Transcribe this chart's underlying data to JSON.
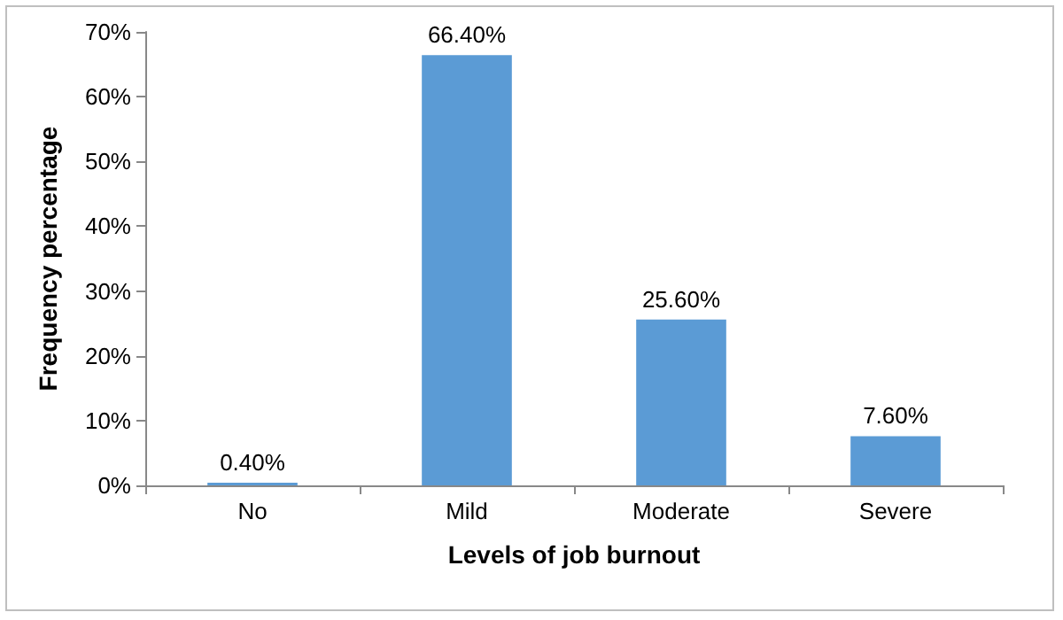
{
  "chart_data": {
    "type": "bar",
    "xlabel": "Levels of job burnout",
    "ylabel": "Frequency percentage",
    "categories": [
      "No",
      "Mild",
      "Moderate",
      "Severe"
    ],
    "values": [
      0.4,
      66.4,
      25.6,
      7.6
    ],
    "value_labels": [
      "0.40%",
      "66.40%",
      "25.60%",
      "7.60%"
    ],
    "color": "#5b9bd5",
    "ylim": [
      0,
      70
    ],
    "yticks": [
      {
        "value": 0,
        "label": "0%"
      },
      {
        "value": 10,
        "label": "10%"
      },
      {
        "value": 20,
        "label": "20%"
      },
      {
        "value": 30,
        "label": "30%"
      },
      {
        "value": 40,
        "label": "40%"
      },
      {
        "value": 50,
        "label": "50%"
      },
      {
        "value": 60,
        "label": "60%"
      },
      {
        "value": 70,
        "label": "70%"
      }
    ],
    "grid": false
  }
}
